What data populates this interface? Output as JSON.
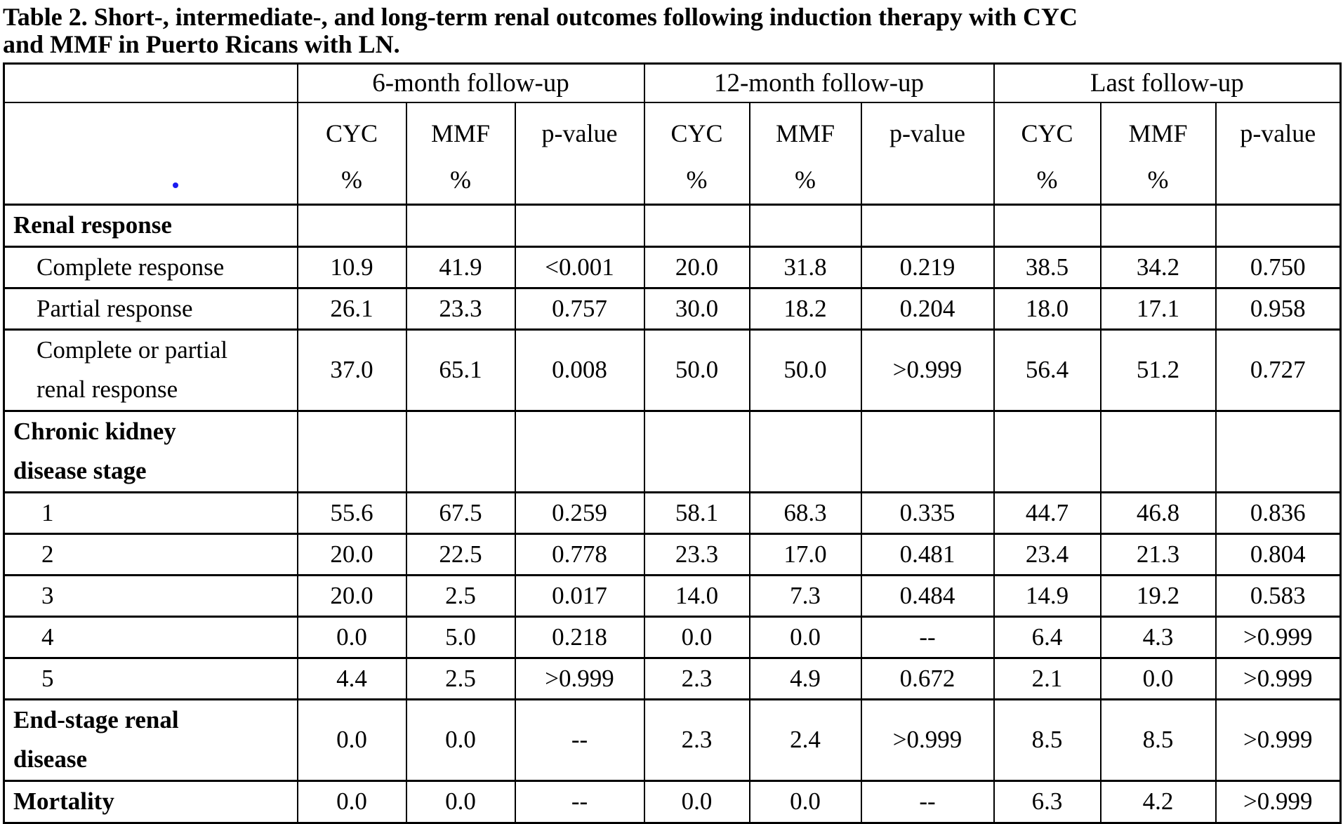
{
  "title_lines": [
    "Table 2. Short-, intermediate-, and long-term renal outcomes following induction therapy with CYC",
    "and MMF in Puerto Ricans with LN."
  ],
  "table": {
    "group_headers": [
      "6-month follow-up",
      "12-month follow-up",
      "Last follow-up"
    ],
    "column_headers": [
      "CYC\n%",
      "MMF\n%",
      "p-value",
      "CYC\n%",
      "MMF\n%",
      "p-value",
      "CYC\n%",
      "MMF\n%",
      "p-value"
    ],
    "rows": [
      {
        "label": "Renal response",
        "style": "section",
        "values": [
          "",
          "",
          "",
          "",
          "",
          "",
          "",
          "",
          ""
        ]
      },
      {
        "label": "Complete response",
        "style": "sub",
        "values": [
          "10.9",
          "41.9",
          "<0.001",
          "20.0",
          "31.8",
          "0.219",
          "38.5",
          "34.2",
          "0.750"
        ]
      },
      {
        "label": "Partial response",
        "style": "sub",
        "values": [
          "26.1",
          "23.3",
          "0.757",
          "30.0",
          "18.2",
          "0.204",
          "18.0",
          "17.1",
          "0.958"
        ]
      },
      {
        "label": "Complete or partial\nrenal response",
        "style": "sub multiline",
        "values": [
          "37.0",
          "65.1",
          "0.008",
          "50.0",
          "50.0",
          ">0.999",
          "56.4",
          "51.2",
          "0.727"
        ]
      },
      {
        "label": "Chronic kidney\ndisease stage",
        "style": "section multiline",
        "values": [
          "",
          "",
          "",
          "",
          "",
          "",
          "",
          "",
          ""
        ]
      },
      {
        "label": "1",
        "style": "stage",
        "values": [
          "55.6",
          "67.5",
          "0.259",
          "58.1",
          "68.3",
          "0.335",
          "44.7",
          "46.8",
          "0.836"
        ]
      },
      {
        "label": "2",
        "style": "stage",
        "values": [
          "20.0",
          "22.5",
          "0.778",
          "23.3",
          "17.0",
          "0.481",
          "23.4",
          "21.3",
          "0.804"
        ]
      },
      {
        "label": "3",
        "style": "stage",
        "values": [
          "20.0",
          "2.5",
          "0.017",
          "14.0",
          "7.3",
          "0.484",
          "14.9",
          "19.2",
          "0.583"
        ]
      },
      {
        "label": "4",
        "style": "stage",
        "values": [
          "0.0",
          "5.0",
          "0.218",
          "0.0",
          "0.0",
          "--",
          "6.4",
          "4.3",
          ">0.999"
        ]
      },
      {
        "label": "5",
        "style": "stage",
        "values": [
          "4.4",
          "2.5",
          ">0.999",
          "2.3",
          "4.9",
          "0.672",
          "2.1",
          "0.0",
          ">0.999"
        ]
      },
      {
        "label": "End-stage renal\ndisease",
        "style": "section multiline",
        "values": [
          "0.0",
          "0.0",
          "--",
          "2.3",
          "2.4",
          ">0.999",
          "8.5",
          "8.5",
          ">0.999"
        ]
      },
      {
        "label": "Mortality",
        "style": "section",
        "values": [
          "0.0",
          "0.0",
          "--",
          "0.0",
          "0.0",
          "--",
          "6.3",
          "4.2",
          ">0.999"
        ]
      }
    ]
  },
  "artifact": {
    "blue_dot_color": "#1b1bf0"
  }
}
